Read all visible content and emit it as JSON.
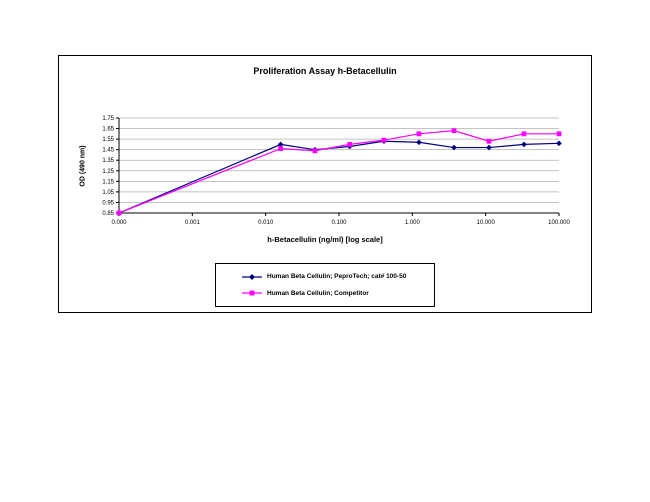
{
  "chart_data": {
    "type": "line",
    "x_scale": "log",
    "title": "Proliferation Assay h-Betacellulin",
    "xlabel": "h-Betacellulin (ng/ml) [log scale]",
    "ylabel": "OD (490 nm)",
    "ylim": [
      0.85,
      1.75
    ],
    "y_ticks": [
      0.85,
      0.95,
      1.05,
      1.15,
      1.25,
      1.35,
      1.45,
      1.55,
      1.65,
      1.75
    ],
    "x_axis_ticks": [
      "0.000",
      "0.001",
      "0.010",
      "0.100",
      "1.000",
      "10.000",
      "100.000"
    ],
    "grid": "horizontal",
    "legend_position": "bottom",
    "x": [
      0,
      0.016,
      0.047,
      0.14,
      0.41,
      1.23,
      3.7,
      11.1,
      33.3,
      100
    ],
    "series": [
      {
        "name": "Human Beta Cellulin; PeproTech; cat# 100-50",
        "color": "#000080",
        "marker": "diamond",
        "values": [
          0.85,
          1.5,
          1.45,
          1.48,
          1.53,
          1.52,
          1.47,
          1.47,
          1.5,
          1.51
        ]
      },
      {
        "name": "Human Beta Cellulin; Competitor",
        "color": "#ff00ff",
        "marker": "square",
        "values": [
          0.85,
          1.46,
          1.44,
          1.5,
          1.54,
          1.6,
          1.63,
          1.53,
          1.6,
          1.6
        ]
      }
    ]
  }
}
